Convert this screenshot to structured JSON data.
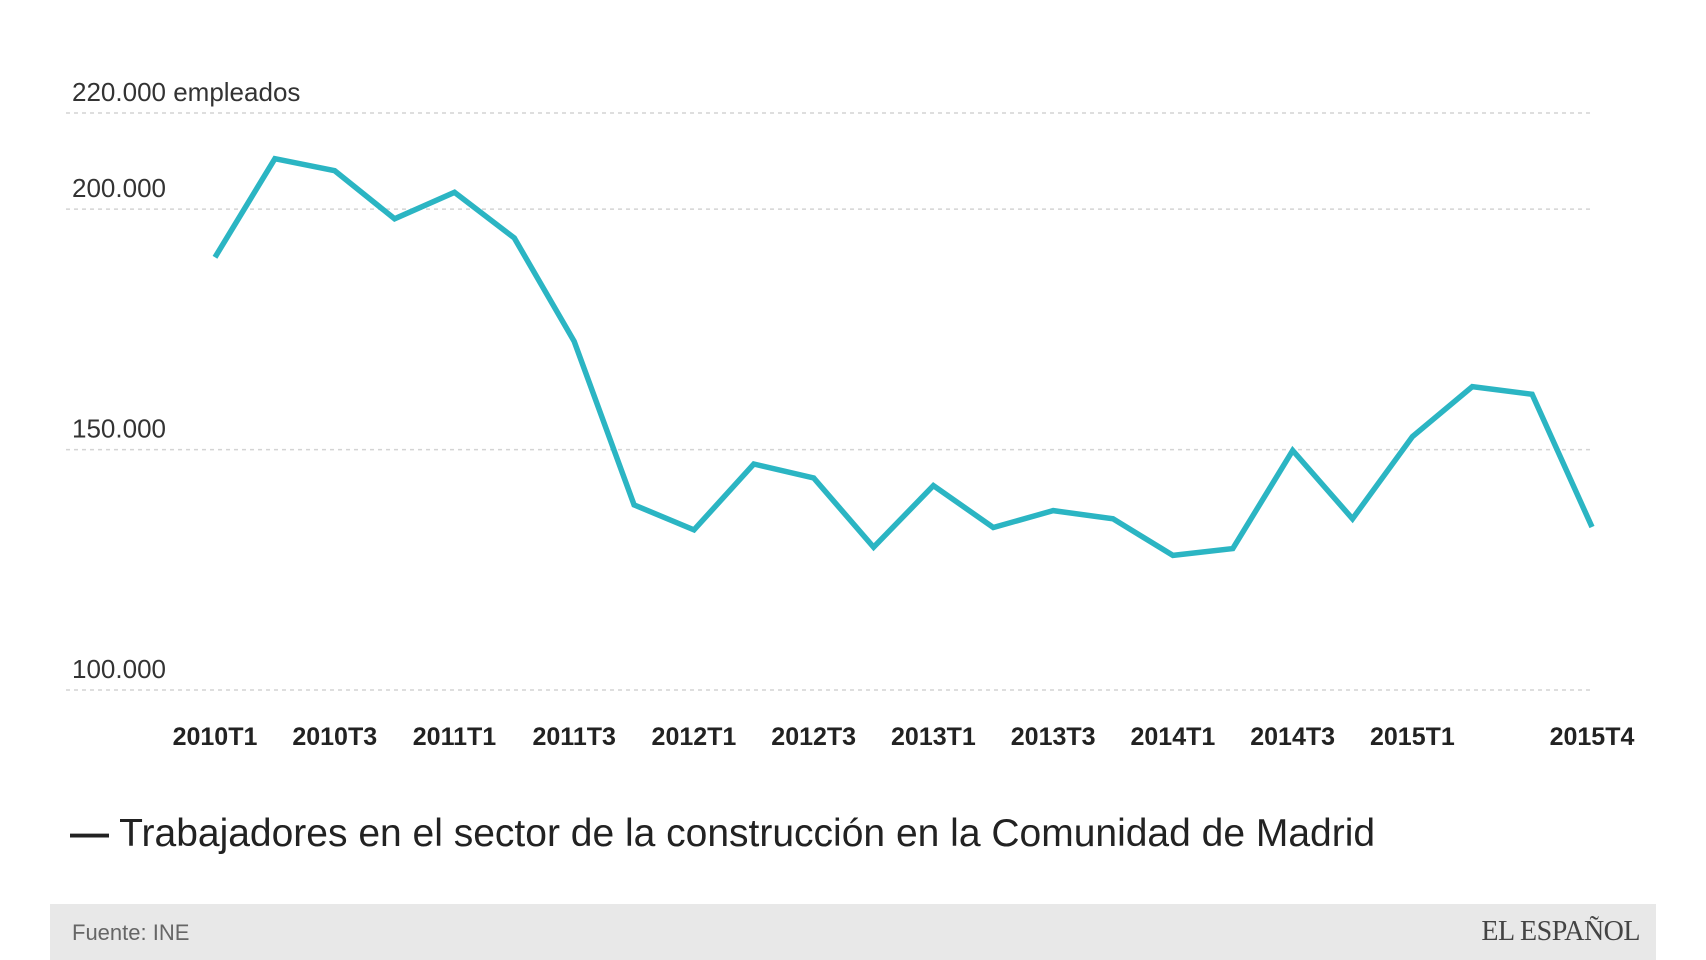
{
  "chart_data": {
    "type": "line",
    "title": "",
    "xlabel": "",
    "ylabel": "empleados",
    "ylim": [
      100000,
      220000
    ],
    "grid": true,
    "y_ticks": [
      {
        "value": 220000,
        "label": "220.000 empleados"
      },
      {
        "value": 200000,
        "label": "200.000"
      },
      {
        "value": 150000,
        "label": "150.000"
      },
      {
        "value": 100000,
        "label": "100.000"
      }
    ],
    "categories": [
      "2010T1",
      "2010T2",
      "2010T3",
      "2010T4",
      "2011T1",
      "2011T2",
      "2011T3",
      "2011T4",
      "2012T1",
      "2012T2",
      "2012T3",
      "2012T4",
      "2013T1",
      "2013T2",
      "2013T3",
      "2013T4",
      "2014T1",
      "2014T2",
      "2014T3",
      "2014T4",
      "2015T1",
      "2015T2",
      "2015T3",
      "2015T4"
    ],
    "tick_labels": [
      {
        "index": 0,
        "label": "2010T1"
      },
      {
        "index": 2,
        "label": "2010T3"
      },
      {
        "index": 4,
        "label": "2011T1"
      },
      {
        "index": 6,
        "label": "2011T3"
      },
      {
        "index": 8,
        "label": "2012T1"
      },
      {
        "index": 10,
        "label": "2012T3"
      },
      {
        "index": 12,
        "label": "2013T1"
      },
      {
        "index": 14,
        "label": "2013T3"
      },
      {
        "index": 16,
        "label": "2014T1"
      },
      {
        "index": 18,
        "label": "2014T3"
      },
      {
        "index": 20,
        "label": "2015T1"
      },
      {
        "index": 23,
        "label": "2015T4"
      }
    ],
    "series": [
      {
        "name": "Trabajadores en el sector de la construcción en la Comunidad de Madrid",
        "color": "#2bb5c3",
        "values": [
          190000,
          210500,
          208000,
          198000,
          203500,
          194000,
          172500,
          138500,
          133300,
          147000,
          144100,
          129700,
          142500,
          133800,
          137300,
          135600,
          128000,
          129400,
          149800,
          135600,
          152700,
          163100,
          161500,
          133900
        ]
      }
    ]
  },
  "legend": {
    "marker": "—",
    "label": "Trabajadores en el sector de la construcción en la Comunidad de Madrid"
  },
  "footer": {
    "source": "Fuente: INE",
    "brand": "EL ESPAÑOL"
  },
  "colors": {
    "line": "#2bb5c3",
    "footer_bg": "#e8e8e8"
  }
}
